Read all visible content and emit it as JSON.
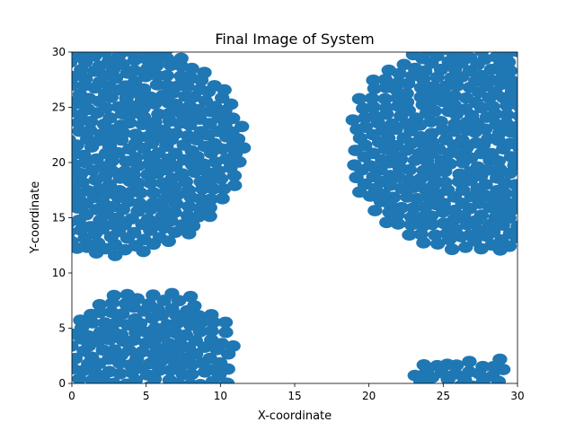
{
  "chart_data": {
    "type": "scatter",
    "title": "Final Image of System",
    "xlabel": "X-coordinate",
    "ylabel": "Y-coordinate",
    "xlim": [
      0,
      30
    ],
    "ylim": [
      0,
      30
    ],
    "xticks": [
      0,
      5,
      10,
      15,
      20,
      25,
      30
    ],
    "yticks": [
      0,
      5,
      10,
      15,
      20,
      25,
      30
    ],
    "grid": false,
    "marker_color": "#1f77b4",
    "clusters": [
      {
        "region": "upper-left",
        "center": [
          2.2,
          21.5
        ],
        "radius": 9.5,
        "bump_max_x": 11
      },
      {
        "region": "upper-right",
        "center": [
          27.5,
          21.5
        ],
        "radius": 9.2,
        "x_min": 18.8
      },
      {
        "region": "lower-left",
        "center": [
          5.2,
          2.5
        ],
        "radius": 5.8,
        "y_max": 8.2
      },
      {
        "region": "lower-right",
        "center": [
          26.2,
          0.4
        ],
        "radius": 3.2,
        "y_max": 2.2
      }
    ]
  }
}
